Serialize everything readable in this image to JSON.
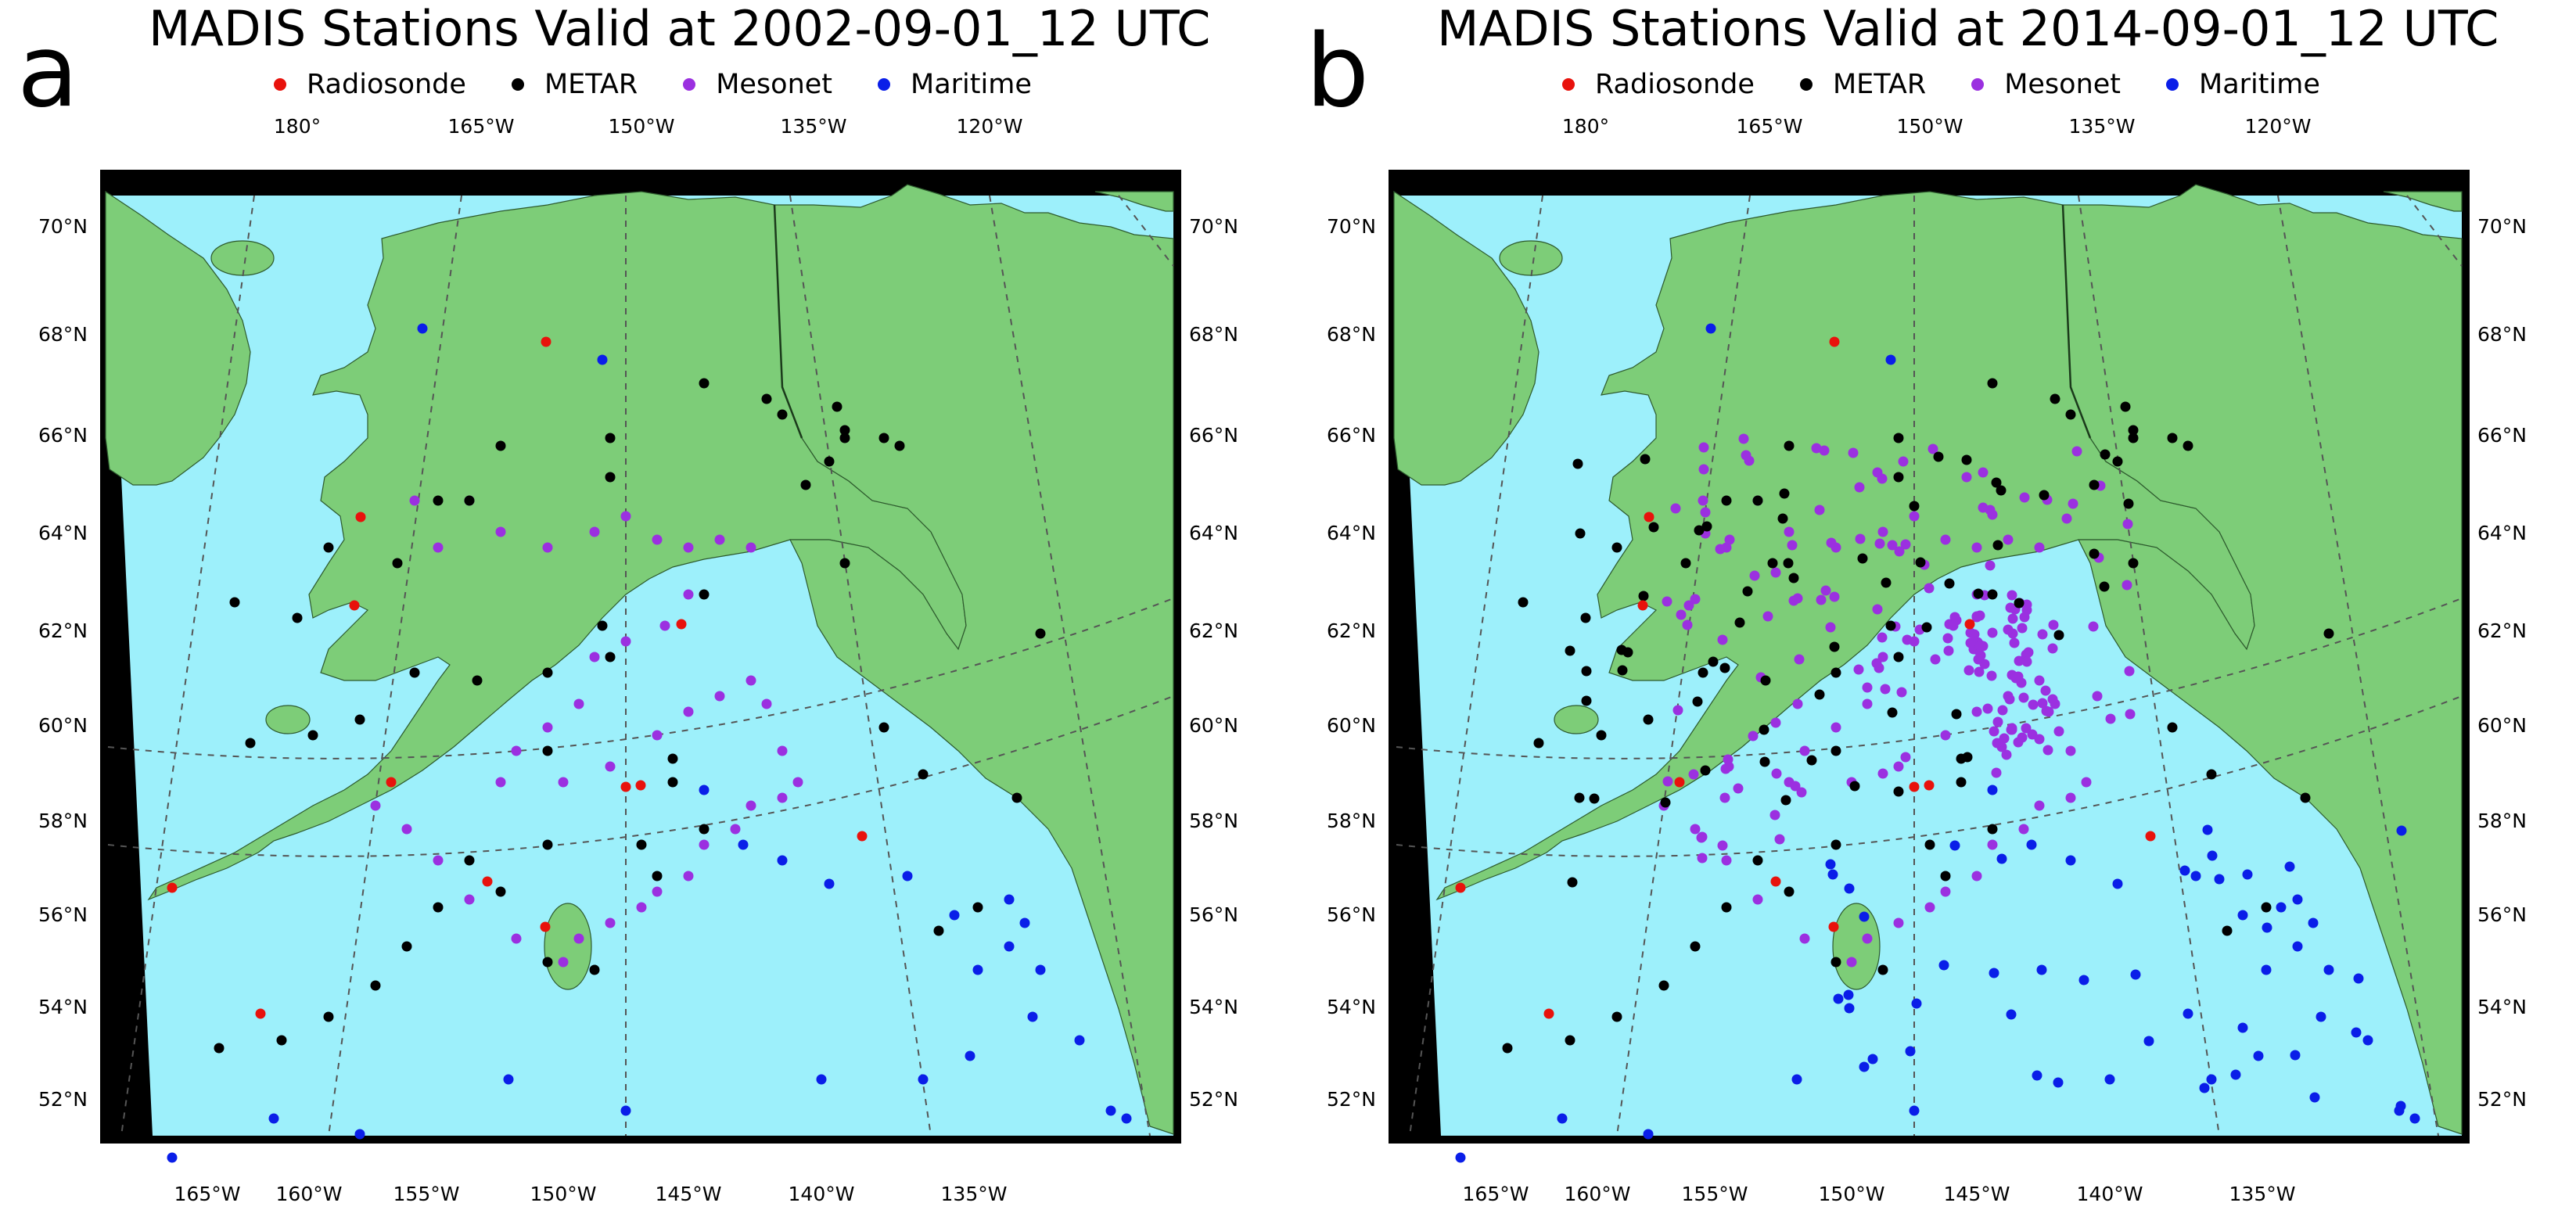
{
  "figure": {
    "panels": [
      {
        "letter": "a",
        "title": "MADIS Stations Valid at 2002-09-01_12 UTC"
      },
      {
        "letter": "b",
        "title": "MADIS Stations Valid at 2014-09-01_12 UTC"
      }
    ],
    "legend": [
      {
        "label": "Radiosonde",
        "color": "#e8120c"
      },
      {
        "label": "METAR",
        "color": "#000000"
      },
      {
        "label": "Mesonet",
        "color": "#9b30e0"
      },
      {
        "label": "Maritime",
        "color": "#0a1ee8"
      }
    ],
    "axes": {
      "top_lon_labels": [
        "180°",
        "165°W",
        "150°W",
        "135°W",
        "120°W"
      ],
      "bottom_lon_labels": [
        "165°W",
        "160°W",
        "155°W",
        "150°W",
        "145°W",
        "140°W",
        "135°W"
      ],
      "lat_labels": [
        "70°N",
        "68°N",
        "66°N",
        "64°N",
        "62°N",
        "60°N",
        "58°N",
        "56°N",
        "54°N",
        "52°N"
      ]
    },
    "colors": {
      "ocean": "#9df0fb",
      "land": "#7dcd78",
      "frame": "#000000",
      "background": "#ffffff"
    }
  }
}
